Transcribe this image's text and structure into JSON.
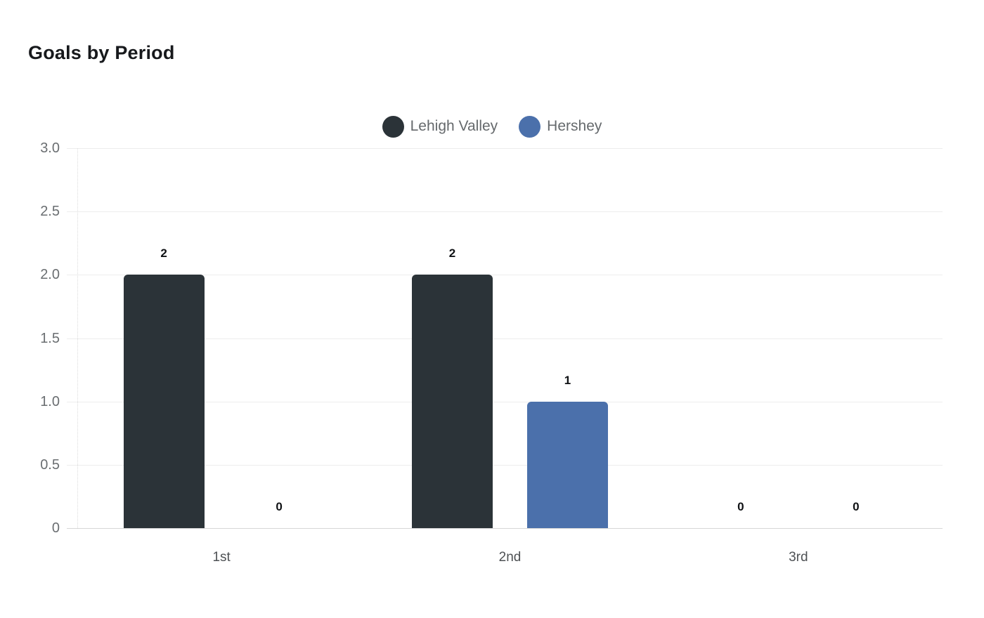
{
  "chart_data": {
    "type": "bar",
    "title": "Goals by Period",
    "categories": [
      "1st",
      "2nd",
      "3rd"
    ],
    "series": [
      {
        "name": "Lehigh Valley",
        "color": "#2b3338",
        "values": [
          2,
          2,
          0
        ]
      },
      {
        "name": "Hershey",
        "color": "#4b70ab",
        "values": [
          0,
          1,
          0
        ]
      }
    ],
    "ylim": [
      0,
      3
    ],
    "yticks": [
      "0",
      "0.5",
      "1.0",
      "1.5",
      "2.0",
      "2.5",
      "3.0"
    ],
    "grid": true,
    "legend_position": "top",
    "value_labels_shown": true,
    "colors": {
      "background": "#ffffff",
      "gridline": "#ededed",
      "baseline": "#d7d7d7",
      "title_text": "#17191c",
      "axis_text": "#6a6e71",
      "value_label_text": "#0f1114",
      "legend_text": "#65696c"
    }
  }
}
